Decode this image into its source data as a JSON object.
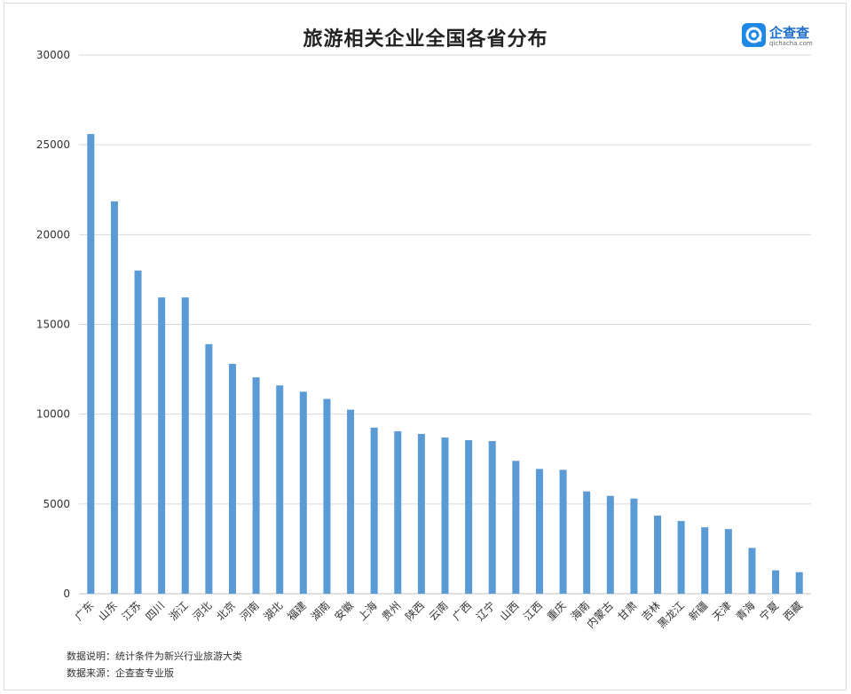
{
  "brand": {
    "name": "企查查",
    "url": "qichacha.com"
  },
  "notes": {
    "note1": "数据说明：统计条件为新兴行业旅游大类",
    "note2": "数据来源：企查查专业版"
  },
  "colors": {
    "bar": "#5b9bd5",
    "grid": "#d9d9d9",
    "brand": "#1e88e5"
  },
  "chart_data": {
    "type": "bar",
    "title": "旅游相关企业全国各省分布",
    "xlabel": "",
    "ylabel": "",
    "ylim": [
      0,
      30000
    ],
    "yticks": [
      0,
      5000,
      10000,
      15000,
      20000,
      25000,
      30000
    ],
    "grid": true,
    "legend": "none",
    "categories": [
      "广东",
      "山东",
      "江苏",
      "四川",
      "浙江",
      "河北",
      "北京",
      "河南",
      "湖北",
      "福建",
      "湖南",
      "安徽",
      "上海",
      "贵州",
      "陕西",
      "云南",
      "广西",
      "辽宁",
      "山西",
      "江西",
      "重庆",
      "海南",
      "内蒙古",
      "甘肃",
      "吉林",
      "黑龙江",
      "新疆",
      "天津",
      "青海",
      "宁夏",
      "西藏"
    ],
    "values": [
      25600,
      21850,
      18000,
      16500,
      16500,
      13900,
      12800,
      12050,
      11600,
      11250,
      10850,
      10250,
      9250,
      9050,
      8900,
      8700,
      8550,
      8500,
      7400,
      6950,
      6900,
      5700,
      5450,
      5300,
      4350,
      4050,
      3700,
      3600,
      2550,
      1300,
      1200
    ]
  }
}
